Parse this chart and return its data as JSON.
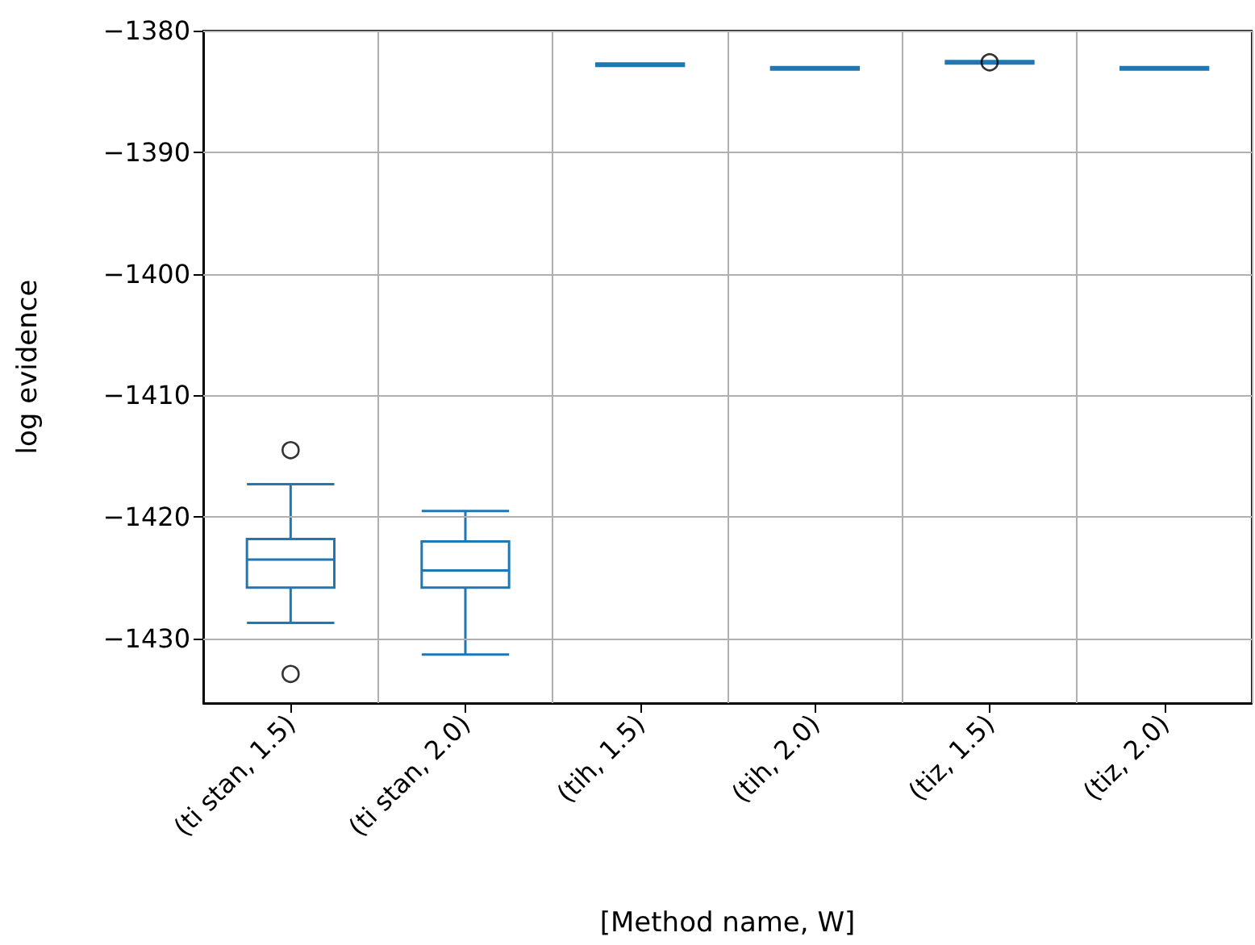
{
  "chart_data": {
    "type": "box",
    "xlabel": "[Method name, W]",
    "ylabel": "log evidence",
    "categories": [
      "(ti stan, 1.5)",
      "(ti stan, 2.0)",
      "(tih, 1.5)",
      "(tih, 2.0)",
      "(tiz, 1.5)",
      "(tiz, 2.0)"
    ],
    "color": "#1f77b4",
    "boxes": [
      {
        "low": -1428.7,
        "q1": -1425.8,
        "median": -1423.5,
        "q3": -1421.8,
        "high": -1417.3,
        "outliers": [
          -1414.5,
          -1432.9
        ]
      },
      {
        "low": -1431.3,
        "q1": -1425.8,
        "median": -1424.4,
        "q3": -1422.0,
        "high": -1419.5
      },
      {
        "low": -1382.9,
        "q1": -1382.9,
        "median": -1382.8,
        "q3": -1382.7,
        "high": -1382.7
      },
      {
        "low": -1383.2,
        "q1": -1383.2,
        "median": -1383.1,
        "q3": -1383.0,
        "high": -1383.0
      },
      {
        "low": -1382.7,
        "q1": -1382.7,
        "median": -1382.6,
        "q3": -1382.5,
        "high": -1382.5,
        "outliers": [
          -1382.6
        ]
      },
      {
        "low": -1383.2,
        "q1": -1383.2,
        "median": -1383.1,
        "q3": -1383.0,
        "high": -1383.0
      }
    ],
    "ylim": [
      -1435.3,
      -1380
    ],
    "yticks": [
      -1430,
      -1420,
      -1410,
      -1400,
      -1390,
      -1380
    ],
    "grid": true
  }
}
